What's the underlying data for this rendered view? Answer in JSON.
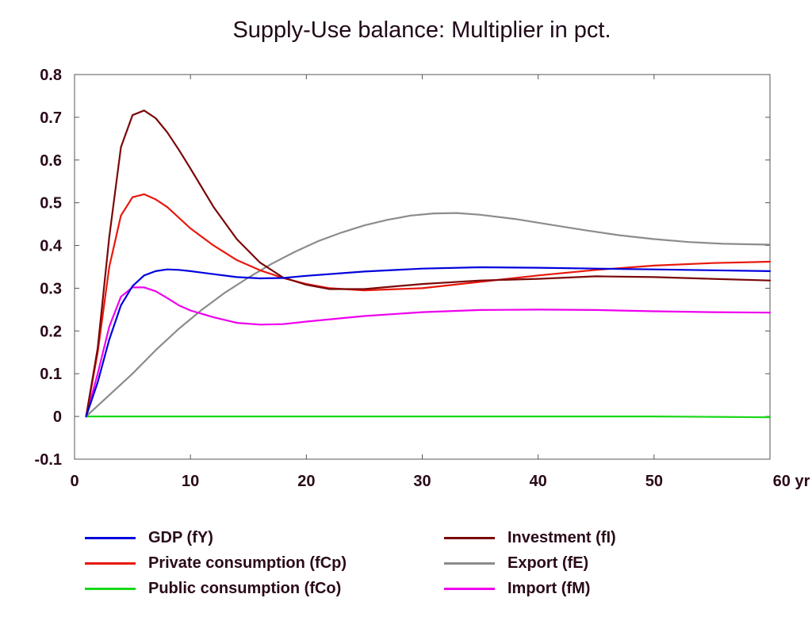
{
  "chart_data": {
    "type": "line",
    "title": "Supply-Use balance: Multiplier in pct.",
    "xlabel": "",
    "ylabel": "",
    "x_unit_label": "yr",
    "xlim": [
      0,
      60
    ],
    "ylim": [
      -0.1,
      0.8
    ],
    "x_ticks": [
      0,
      10,
      20,
      30,
      40,
      50,
      60
    ],
    "x_tick_labels": [
      "0",
      "10",
      "20",
      "30",
      "40",
      "50",
      "60 yr"
    ],
    "y_ticks": [
      -0.1,
      0,
      0.1,
      0.2,
      0.3,
      0.4,
      0.5,
      0.6,
      0.7,
      0.8
    ],
    "y_tick_labels": [
      "-0.1",
      "0",
      "0.1",
      "0.2",
      "0.3",
      "0.4",
      "0.5",
      "0.6",
      "0.7",
      "0.8"
    ],
    "grid": false,
    "legend_position": "bottom",
    "series": [
      {
        "name": "GDP (fY)",
        "color": "#0000dd",
        "x": [
          1,
          2,
          3,
          4,
          5,
          6,
          7,
          8,
          9,
          10,
          12,
          14,
          16,
          18,
          20,
          25,
          30,
          35,
          40,
          45,
          50,
          55,
          60
        ],
        "values": [
          0.0,
          0.08,
          0.18,
          0.26,
          0.305,
          0.33,
          0.34,
          0.344,
          0.343,
          0.34,
          0.333,
          0.326,
          0.323,
          0.324,
          0.329,
          0.339,
          0.346,
          0.349,
          0.348,
          0.346,
          0.344,
          0.342,
          0.34
        ]
      },
      {
        "name": "Private consumption (fCp)",
        "color": "#e8180c",
        "x": [
          1,
          2,
          3,
          4,
          5,
          6,
          7,
          8,
          10,
          12,
          14,
          16,
          18,
          20,
          22,
          25,
          30,
          35,
          40,
          45,
          50,
          55,
          60
        ],
        "values": [
          0.0,
          0.15,
          0.35,
          0.47,
          0.513,
          0.52,
          0.508,
          0.49,
          0.44,
          0.4,
          0.366,
          0.342,
          0.324,
          0.31,
          0.3,
          0.295,
          0.3,
          0.315,
          0.33,
          0.343,
          0.353,
          0.359,
          0.362
        ]
      },
      {
        "name": "Public consumption (fCo)",
        "color": "#18d818",
        "x": [
          1,
          10,
          20,
          30,
          40,
          50,
          55,
          60
        ],
        "values": [
          0.0,
          0.0,
          0.0,
          0.0,
          0.0,
          0.0,
          -0.001,
          -0.002
        ]
      },
      {
        "name": "Investment (fI)",
        "color": "#7a0808",
        "x": [
          1,
          2,
          3,
          4,
          5,
          6,
          7,
          8,
          9,
          10,
          12,
          14,
          16,
          18,
          20,
          22,
          25,
          30,
          35,
          40,
          45,
          50,
          55,
          60
        ],
        "values": [
          0.0,
          0.16,
          0.42,
          0.63,
          0.705,
          0.716,
          0.698,
          0.665,
          0.624,
          0.58,
          0.49,
          0.415,
          0.36,
          0.325,
          0.308,
          0.298,
          0.298,
          0.31,
          0.318,
          0.322,
          0.328,
          0.326,
          0.322,
          0.318
        ]
      },
      {
        "name": "Export (fE)",
        "color": "#8c8c8c",
        "x": [
          1,
          3,
          5,
          7,
          9,
          11,
          13,
          15,
          17,
          19,
          21,
          23,
          25,
          27,
          29,
          31,
          33,
          35,
          38,
          41,
          44,
          47,
          50,
          53,
          56,
          60
        ],
        "values": [
          0.0,
          0.05,
          0.1,
          0.155,
          0.205,
          0.25,
          0.29,
          0.325,
          0.357,
          0.385,
          0.41,
          0.43,
          0.447,
          0.46,
          0.47,
          0.475,
          0.476,
          0.472,
          0.462,
          0.449,
          0.436,
          0.424,
          0.415,
          0.408,
          0.404,
          0.402
        ]
      },
      {
        "name": "Import (fM)",
        "color": "#ee00ee",
        "x": [
          1,
          2,
          3,
          4,
          5,
          6,
          7,
          8,
          9,
          10,
          12,
          14,
          16,
          18,
          20,
          25,
          30,
          35,
          40,
          45,
          50,
          55,
          60
        ],
        "values": [
          0.0,
          0.1,
          0.21,
          0.28,
          0.302,
          0.302,
          0.293,
          0.277,
          0.26,
          0.248,
          0.232,
          0.219,
          0.215,
          0.216,
          0.222,
          0.235,
          0.244,
          0.249,
          0.25,
          0.249,
          0.246,
          0.244,
          0.243
        ]
      }
    ]
  }
}
